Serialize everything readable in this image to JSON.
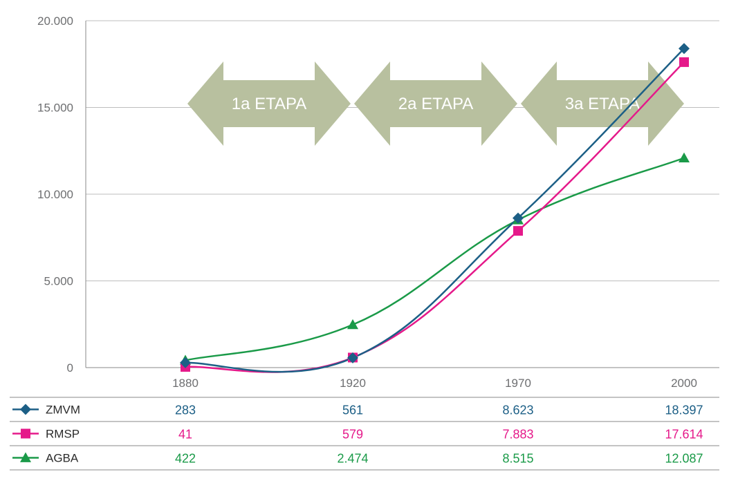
{
  "chart_data": {
    "type": "line",
    "categories": [
      "1880",
      "1920",
      "1970",
      "2000"
    ],
    "y_ticks": [
      "0",
      "5.000",
      "10.000",
      "15.000",
      "20.000"
    ],
    "ylim": [
      0,
      20000
    ],
    "grid": true,
    "legend_placement": "bottom table",
    "series": [
      {
        "name": "ZMVM",
        "values": [
          283,
          561,
          8623,
          18397
        ],
        "labels": [
          "283",
          "561",
          "8.623",
          "18.397"
        ],
        "color": "#1c5f86",
        "marker": "diamond"
      },
      {
        "name": "RMSP",
        "values": [
          41,
          579,
          7883,
          17614
        ],
        "labels": [
          "41",
          "579",
          "7.883",
          "17.614"
        ],
        "color": "#e5198a",
        "marker": "square"
      },
      {
        "name": "AGBA",
        "values": [
          422,
          2474,
          8515,
          12087
        ],
        "labels": [
          "422",
          "2.474",
          "8.515",
          "12.087"
        ],
        "color": "#1a9a48",
        "marker": "triangle"
      }
    ],
    "annotations": [
      "1a ETAPA",
      "2a ETAPA",
      "3a ETAPA"
    ],
    "annotation_color": "#b8c09f"
  }
}
